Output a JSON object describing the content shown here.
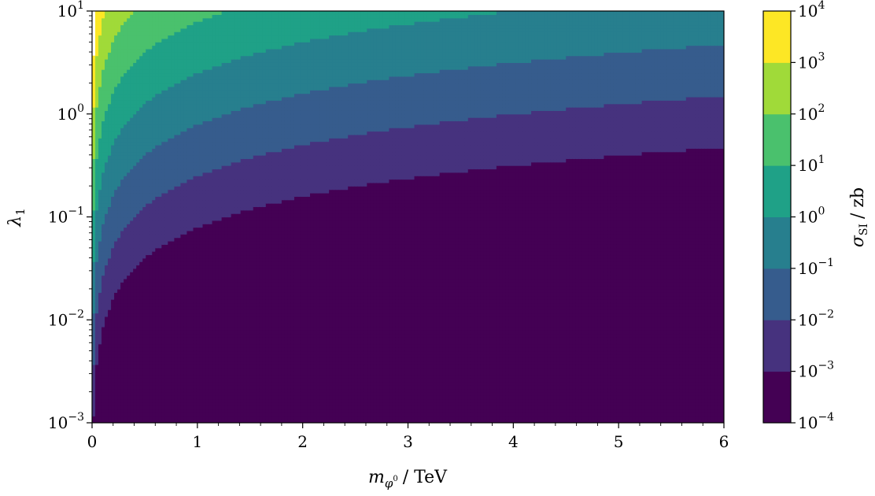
{
  "chart_data": {
    "type": "heatmap",
    "xlabel": {
      "main": "m",
      "sub": "φ",
      "supsub": "0",
      "unit": "/ TeV"
    },
    "ylabel": {
      "main": "λ",
      "sub": "1"
    },
    "colorbar_label": {
      "main": "σ",
      "sub": "SI",
      "unit": "/ zb"
    },
    "xlim": [
      0,
      6
    ],
    "ylim": [
      0.001,
      10
    ],
    "yscale": "log",
    "x_ticks": [
      "0",
      "1",
      "2",
      "3",
      "4",
      "5",
      "6"
    ],
    "y_ticks": [
      {
        "base": "10",
        "exp": "−3",
        "value": 0.001
      },
      {
        "base": "10",
        "exp": "−2",
        "value": 0.01
      },
      {
        "base": "10",
        "exp": "−1",
        "value": 0.1
      },
      {
        "base": "10",
        "exp": "0",
        "value": 1
      },
      {
        "base": "10",
        "exp": "1",
        "value": 10
      }
    ],
    "colorbar_ticks": [
      {
        "base": "10",
        "exp": "−4"
      },
      {
        "base": "10",
        "exp": "−3"
      },
      {
        "base": "10",
        "exp": "−2"
      },
      {
        "base": "10",
        "exp": "−1"
      },
      {
        "base": "10",
        "exp": "0"
      },
      {
        "base": "10",
        "exp": "1"
      },
      {
        "base": "10",
        "exp": "2"
      },
      {
        "base": "10",
        "exp": "3"
      },
      {
        "base": "10",
        "exp": "4"
      }
    ],
    "levels": [
      0.0001,
      0.001,
      0.01,
      0.1,
      1,
      10,
      100,
      1000,
      10000
    ],
    "level_colors": [
      "#440154",
      "#46327e",
      "#365c8d",
      "#277f8e",
      "#1fa187",
      "#4ac16d",
      "#a0da39",
      "#fde725"
    ],
    "model": {
      "form": "sigma = A * lambda^2 / m^2",
      "A": 0.16,
      "domain_limit_sigma": 10000,
      "grid_nx": 200,
      "grid_ny": 120
    }
  }
}
